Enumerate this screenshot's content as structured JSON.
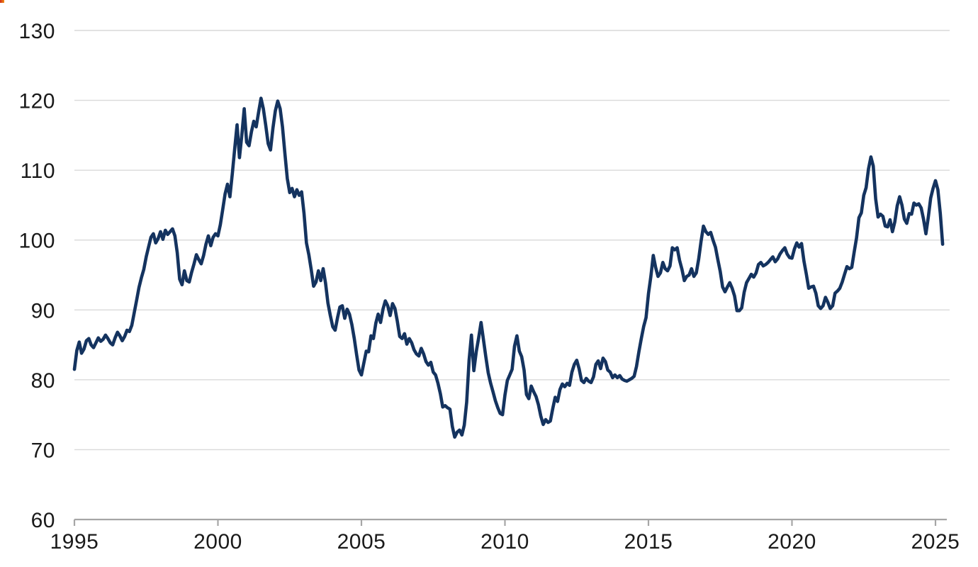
{
  "page": {
    "background": "#ffffff"
  },
  "corner_mark": {
    "color_left": "#cf2a1b",
    "color_right": "#f09112"
  },
  "chart_data": {
    "type": "line",
    "title": "",
    "xlabel": "",
    "ylabel": "",
    "x_ticks": [
      1995,
      2000,
      2005,
      2010,
      2015,
      2020,
      2025
    ],
    "y_ticks": [
      60,
      70,
      80,
      90,
      100,
      110,
      120,
      130
    ],
    "ylim": [
      60,
      130
    ],
    "xlim": [
      1995,
      2025.4
    ],
    "grid": "horizontal-only",
    "legend": "none",
    "line_color": "#14335f",
    "line_width": 4.6,
    "grid_color": "#d9d9d9",
    "axis_color": "#a6a6a6",
    "tick_label_color": "#1a1a1a",
    "series": [
      {
        "name": "index",
        "frequency": "monthly",
        "start_year": 1995,
        "start_month": 1,
        "values": [
          81.5,
          84.2,
          85.4,
          83.8,
          84.4,
          85.6,
          85.9,
          85.0,
          84.6,
          85.3,
          86.0,
          85.5,
          85.8,
          86.4,
          85.9,
          85.3,
          85.0,
          86.0,
          86.8,
          86.3,
          85.6,
          86.2,
          87.1,
          86.9,
          87.8,
          89.6,
          91.4,
          93.2,
          94.6,
          95.8,
          97.6,
          99.0,
          100.4,
          100.9,
          99.6,
          100.2,
          101.2,
          100.1,
          101.4,
          100.8,
          101.2,
          101.6,
          100.6,
          98.2,
          94.4,
          93.6,
          95.6,
          94.2,
          94.0,
          95.4,
          96.6,
          97.9,
          97.2,
          96.6,
          97.8,
          99.4,
          100.6,
          99.2,
          100.4,
          100.9,
          100.6,
          102.2,
          104.4,
          106.6,
          108.0,
          106.2,
          109.5,
          113.0,
          116.5,
          111.8,
          115.0,
          118.8,
          114.0,
          113.5,
          115.5,
          117.0,
          116.2,
          118.3,
          120.3,
          118.8,
          116.4,
          113.8,
          112.9,
          116.0,
          118.5,
          119.9,
          118.8,
          116.2,
          112.4,
          108.8,
          106.8,
          107.4,
          106.2,
          107.2,
          106.4,
          106.9,
          103.8,
          99.6,
          97.9,
          95.8,
          93.4,
          94.0,
          95.6,
          94.2,
          95.9,
          93.8,
          91.0,
          89.2,
          87.6,
          87.1,
          88.9,
          90.4,
          90.6,
          88.8,
          90.1,
          89.4,
          87.9,
          85.9,
          83.6,
          81.4,
          80.7,
          82.4,
          84.1,
          84.0,
          86.3,
          85.9,
          88.1,
          89.4,
          88.2,
          90.1,
          91.3,
          90.6,
          89.2,
          90.9,
          90.2,
          88.4,
          86.2,
          85.9,
          86.6,
          85.1,
          85.9,
          85.3,
          84.3,
          83.7,
          83.4,
          84.5,
          83.7,
          82.6,
          82.1,
          82.5,
          81.1,
          80.7,
          79.5,
          78.0,
          76.1,
          76.3,
          76.0,
          75.8,
          73.3,
          71.8,
          72.5,
          72.8,
          72.1,
          73.5,
          76.8,
          82.8,
          86.4,
          81.3,
          84.0,
          86.0,
          88.2,
          85.8,
          83.3,
          81.0,
          79.5,
          78.3,
          77.0,
          76.0,
          75.2,
          75.0,
          77.8,
          79.9,
          80.7,
          81.5,
          84.8,
          86.3,
          84.1,
          83.3,
          81.4,
          77.9,
          77.3,
          79.1,
          78.3,
          77.6,
          76.4,
          74.8,
          73.6,
          74.3,
          73.9,
          74.1,
          75.9,
          77.5,
          76.9,
          78.6,
          79.4,
          79.0,
          79.5,
          79.2,
          81.1,
          82.2,
          82.8,
          81.6,
          79.9,
          79.6,
          80.2,
          79.8,
          79.6,
          80.4,
          82.2,
          82.7,
          81.6,
          83.1,
          82.6,
          81.4,
          81.1,
          80.3,
          80.7,
          80.3,
          80.6,
          80.1,
          79.9,
          79.8,
          80.0,
          80.2,
          80.5,
          81.9,
          84.0,
          85.9,
          87.6,
          88.9,
          92.3,
          94.8,
          97.8,
          96.1,
          94.8,
          95.3,
          96.8,
          95.9,
          95.6,
          96.3,
          98.9,
          98.6,
          98.9,
          97.1,
          95.8,
          94.2,
          94.8,
          95.0,
          95.9,
          94.8,
          95.3,
          97.3,
          99.8,
          102.0,
          101.2,
          100.8,
          101.1,
          100.0,
          99.0,
          97.2,
          95.5,
          93.3,
          92.6,
          93.3,
          93.9,
          93.1,
          92.0,
          89.9,
          89.9,
          90.3,
          92.5,
          93.9,
          94.5,
          95.1,
          94.7,
          95.3,
          96.5,
          96.8,
          96.3,
          96.5,
          96.8,
          97.2,
          97.6,
          96.9,
          97.3,
          98.0,
          98.5,
          98.9,
          98.0,
          97.5,
          97.4,
          98.7,
          99.6,
          99.0,
          99.5,
          97.0,
          95.1,
          93.1,
          93.3,
          93.4,
          92.4,
          90.6,
          90.2,
          90.6,
          91.8,
          91.1,
          90.2,
          90.6,
          92.4,
          92.7,
          93.1,
          94.0,
          95.1,
          96.2,
          95.9,
          96.1,
          98.3,
          100.3,
          103.2,
          103.9,
          106.4,
          107.5,
          110.2,
          111.9,
          110.6,
          105.9,
          103.3,
          103.7,
          103.4,
          102.0,
          101.9,
          102.9,
          101.2,
          102.6,
          104.9,
          106.2,
          105.0,
          103.0,
          102.4,
          103.8,
          103.7,
          105.3,
          105.0,
          105.2,
          104.6,
          103.0,
          100.9,
          103.3,
          106.0,
          107.4,
          108.5,
          107.2,
          103.8,
          99.4
        ]
      }
    ]
  }
}
